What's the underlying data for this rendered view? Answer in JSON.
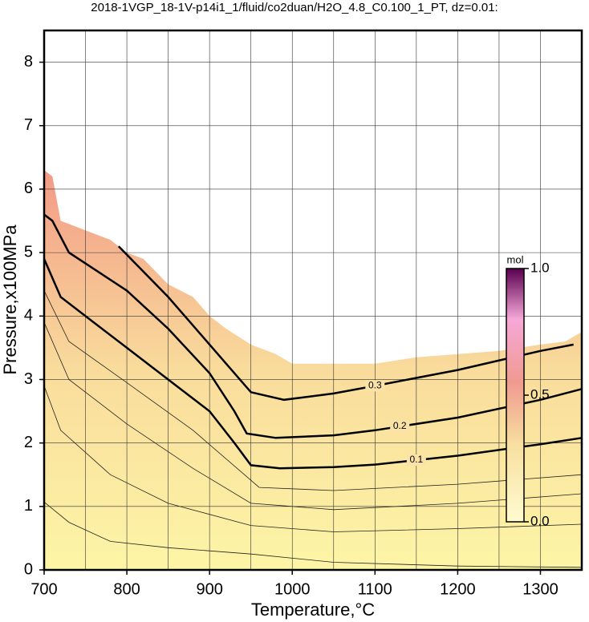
{
  "chart_data": {
    "type": "contour",
    "title": "2018-1VGP_18-1V-p14i1_1/fluid/co2duan/H2O_4.8_C0.100_1_PT, dz=0.01:",
    "x_label": "Temperature,°C",
    "y_label": "Pressure,x100MPa",
    "xlim": [
      700,
      1350
    ],
    "ylim": [
      0,
      8.5
    ],
    "xticks": [
      700,
      800,
      900,
      1000,
      1100,
      1200,
      1300
    ],
    "xminorticks": [
      750,
      850,
      950,
      1050,
      1150,
      1250,
      1350
    ],
    "yticks": [
      0,
      1,
      2,
      3,
      4,
      5,
      6,
      7,
      8
    ],
    "grid": true,
    "data_boundary": {
      "x": [
        700,
        710,
        720,
        740,
        760,
        780,
        800,
        820,
        850,
        880,
        900,
        920,
        950,
        980,
        1000,
        1100,
        1150,
        1200,
        1250,
        1300,
        1330,
        1350
      ],
      "y": [
        6.3,
        6.2,
        5.5,
        5.4,
        5.3,
        5.2,
        5.0,
        4.9,
        4.5,
        4.3,
        4.0,
        3.8,
        3.55,
        3.4,
        3.25,
        3.25,
        3.35,
        3.4,
        3.45,
        3.55,
        3.6,
        3.75
      ]
    },
    "contours": [
      {
        "level": 0.1,
        "label_x": 1150,
        "x": [
          700,
          710,
          720,
          760,
          800,
          850,
          900,
          930,
          950,
          985,
          1050,
          1100,
          1200,
          1300,
          1350
        ],
        "y": [
          4.9,
          4.6,
          4.3,
          3.9,
          3.5,
          3.0,
          2.5,
          2.0,
          1.65,
          1.6,
          1.62,
          1.66,
          1.8,
          1.98,
          2.08
        ]
      },
      {
        "level": 0.2,
        "label_x": 1130,
        "x": [
          700,
          710,
          730,
          800,
          850,
          900,
          930,
          945,
          980,
          1050,
          1100,
          1200,
          1300,
          1350
        ],
        "y": [
          5.6,
          5.5,
          5.0,
          4.4,
          3.8,
          3.1,
          2.5,
          2.15,
          2.08,
          2.12,
          2.2,
          2.4,
          2.68,
          2.85
        ]
      },
      {
        "level": 0.3,
        "label_x": 1100,
        "x": [
          790,
          850,
          900,
          930,
          950,
          990,
          1050,
          1100,
          1200,
          1300,
          1340
        ],
        "y": [
          5.1,
          4.3,
          3.55,
          3.1,
          2.8,
          2.68,
          2.78,
          2.9,
          3.15,
          3.45,
          3.55
        ]
      }
    ],
    "thin_contours": [
      {
        "level": 0.01,
        "x": [
          700,
          730,
          780,
          850,
          950,
          1050,
          1200,
          1350
        ],
        "y": [
          1.07,
          0.75,
          0.45,
          0.35,
          0.25,
          0.12,
          0.06,
          0.04
        ]
      },
      {
        "level": 0.03,
        "x": [
          700,
          720,
          780,
          850,
          950,
          1050,
          1200,
          1350
        ],
        "y": [
          2.9,
          2.2,
          1.5,
          1.05,
          0.7,
          0.6,
          0.65,
          0.72
        ]
      },
      {
        "level": 0.05,
        "x": [
          700,
          730,
          800,
          880,
          950,
          1050,
          1200,
          1350
        ],
        "y": [
          3.9,
          3.0,
          2.3,
          1.6,
          1.05,
          0.95,
          1.05,
          1.2
        ]
      },
      {
        "level": 0.07,
        "x": [
          700,
          730,
          800,
          880,
          960,
          1050,
          1200,
          1350
        ],
        "y": [
          4.4,
          3.6,
          2.95,
          2.2,
          1.3,
          1.25,
          1.35,
          1.5
        ]
      }
    ],
    "colorbar": {
      "label": "mol",
      "lim": [
        0,
        1
      ],
      "ticks": [
        {
          "value": 0,
          "label": "0.0"
        },
        {
          "value": 0.5,
          "label": "0.5"
        },
        {
          "value": 1,
          "label": "1.0"
        }
      ]
    }
  }
}
